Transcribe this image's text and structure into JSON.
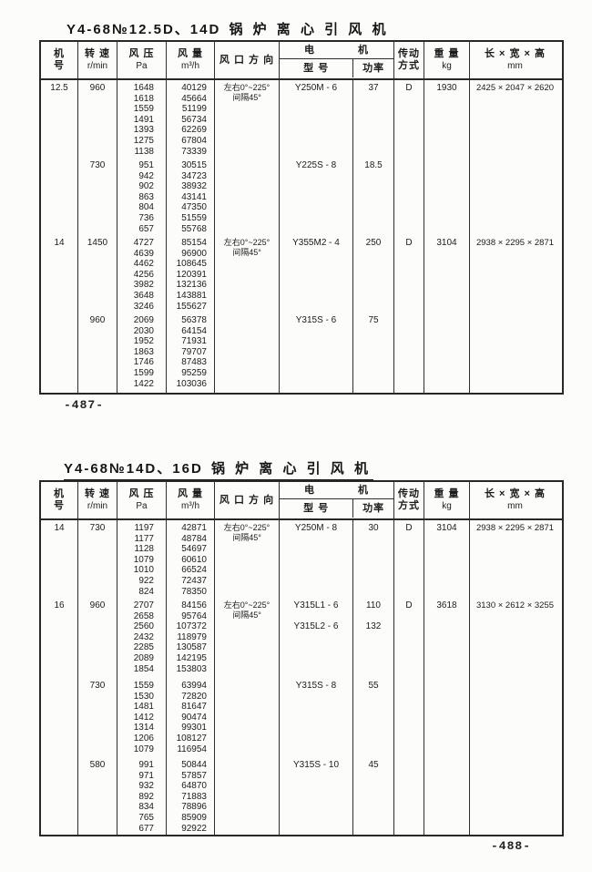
{
  "header": {
    "no": [
      "机",
      "号"
    ],
    "speed": [
      "转 速",
      "r/min"
    ],
    "pressure": [
      "风 压",
      "Pa"
    ],
    "volume": [
      "风 量",
      "m³/h"
    ],
    "direction": "风 口 方 向",
    "motor": [
      "电",
      "机"
    ],
    "model": "型  号",
    "power": "功率",
    "drive": [
      "传动",
      "方式"
    ],
    "weight": [
      "重 量",
      "kg"
    ],
    "dims": [
      "长 × 宽 × 高",
      "mm"
    ]
  },
  "tables": [
    {
      "title": "Y4-68№12.5D、14D 锅 炉 离 心 引 风 机",
      "page_number": "-487-",
      "blocks": [
        {
          "no": [
            "12.5"
          ],
          "speed": [
            "960"
          ],
          "pressure": [
            "1648",
            "1618",
            "1559",
            "1491",
            "1393",
            "1275",
            "1138"
          ],
          "volume": [
            "40129",
            "45664",
            "51199",
            "56734",
            "62269",
            "67804",
            "73339"
          ],
          "direction": [
            "左右0°~225°",
            "间隔45°"
          ],
          "model": [
            "Y250M - 6"
          ],
          "power": [
            "37"
          ],
          "drive": [
            "D"
          ],
          "weight": [
            "1930"
          ],
          "dims": [
            "2425 × 2047 × 2620"
          ]
        },
        {
          "no": [],
          "speed": [
            "730"
          ],
          "pressure": [
            "951",
            "942",
            "902",
            "863",
            "804",
            "736",
            "657"
          ],
          "volume": [
            "30515",
            "34723",
            "38932",
            "43141",
            "47350",
            "51559",
            "55768"
          ],
          "direction": [],
          "model": [
            "Y225S - 8"
          ],
          "power": [
            "18.5"
          ],
          "drive": [],
          "weight": [],
          "dims": []
        },
        {
          "no": [
            "14"
          ],
          "speed": [
            "1450"
          ],
          "pressure": [
            "4727",
            "4639",
            "4462",
            "4256",
            "3982",
            "3648",
            "3246"
          ],
          "volume": [
            "85154",
            "96900",
            "108645",
            "120391",
            "132136",
            "143881",
            "155627"
          ],
          "direction": [
            "左右0°~225°",
            "间隔45°"
          ],
          "model": [
            "Y355M2 - 4"
          ],
          "power": [
            "250"
          ],
          "drive": [
            "D"
          ],
          "weight": [
            "3104"
          ],
          "dims": [
            "2938 × 2295 × 2871"
          ]
        },
        {
          "no": [],
          "speed": [
            "960"
          ],
          "pressure": [
            "2069",
            "2030",
            "1952",
            "1863",
            "1746",
            "1599",
            "1422"
          ],
          "volume": [
            "56378",
            "64154",
            "71931",
            "79707",
            "87483",
            "95259",
            "103036"
          ],
          "direction": [],
          "model": [
            "Y315S - 6"
          ],
          "power": [
            "75"
          ],
          "drive": [],
          "weight": [],
          "dims": []
        }
      ]
    },
    {
      "title": "Y4-68№14D、16D 锅 炉 离 心 引 风 机",
      "page_number": "-488-",
      "blocks": [
        {
          "no": [
            "14"
          ],
          "speed": [
            "730"
          ],
          "pressure": [
            "1197",
            "1177",
            "1128",
            "1079",
            "1010",
            "922",
            "824"
          ],
          "volume": [
            "42871",
            "48784",
            "54697",
            "60610",
            "66524",
            "72437",
            "78350"
          ],
          "direction": [
            "左右0°~225°",
            "间隔45°"
          ],
          "model": [
            "Y250M - 8"
          ],
          "power": [
            "30"
          ],
          "drive": [
            "D"
          ],
          "weight": [
            "3104"
          ],
          "dims": [
            "2938 × 2295 × 2871"
          ]
        },
        {
          "no": [
            "16"
          ],
          "speed": [
            "960"
          ],
          "pressure": [
            "2707",
            "2658",
            "2560",
            "2432",
            "2285",
            "2089",
            "1854"
          ],
          "volume": [
            "84156",
            "95764",
            "107372",
            "118979",
            "130587",
            "142195",
            "153803"
          ],
          "direction": [
            "左右0°~225°",
            "间隔45°"
          ],
          "model": [
            "Y315L1 - 6",
            "",
            "Y315L2 - 6"
          ],
          "power": [
            "110",
            "",
            "132"
          ],
          "drive": [
            "D"
          ],
          "weight": [
            "3618"
          ],
          "dims": [
            "3130 × 2612 × 3255"
          ]
        },
        {
          "no": [],
          "speed": [
            "730"
          ],
          "pressure": [
            "1559",
            "1530",
            "1481",
            "1412",
            "1314",
            "1206",
            "1079"
          ],
          "volume": [
            "63994",
            "72820",
            "81647",
            "90474",
            "99301",
            "108127",
            "116954"
          ],
          "direction": [],
          "model": [
            "Y315S - 8"
          ],
          "power": [
            "55"
          ],
          "drive": [],
          "weight": [],
          "dims": []
        },
        {
          "no": [],
          "speed": [
            "580"
          ],
          "pressure": [
            "991",
            "971",
            "932",
            "892",
            "834",
            "765",
            "677"
          ],
          "volume": [
            "50844",
            "57857",
            "64870",
            "71883",
            "78896",
            "85909",
            "92922"
          ],
          "direction": [],
          "model": [
            "Y315S - 10"
          ],
          "power": [
            "45"
          ],
          "drive": [],
          "weight": [],
          "dims": []
        }
      ]
    }
  ]
}
